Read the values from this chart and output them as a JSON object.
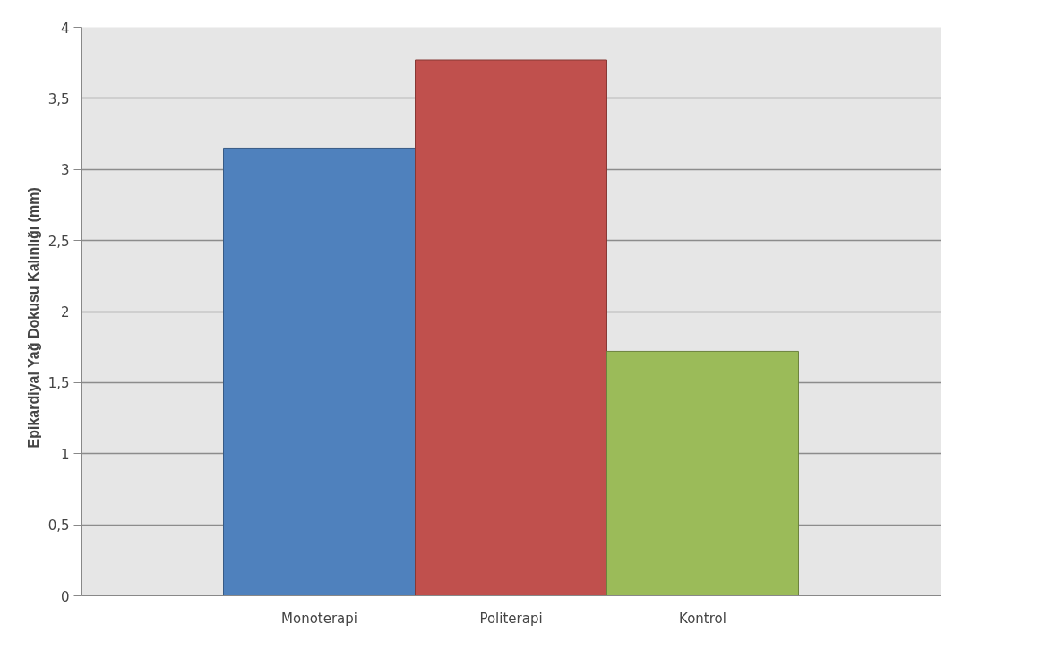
{
  "chart_data": {
    "type": "bar",
    "ylabel": "Epikardiyal  Yağ Dokusu  Kalınlığı  (mm)",
    "categories": [
      "Monoterapi",
      "Politerapi",
      "Kontrol"
    ],
    "values": [
      3.15,
      3.77,
      1.72
    ],
    "colors": [
      "#4f81bd",
      "#c0504d",
      "#9bbb59"
    ],
    "ylim": [
      0,
      4
    ],
    "yticks": [
      0,
      {
        "value": 0.5,
        "label": "0,5"
      },
      1,
      {
        "value": 1.5,
        "label": "1,5"
      },
      2,
      {
        "value": 2.5,
        "label": "2,5"
      },
      3,
      {
        "value": 3.5,
        "label": "3,5"
      },
      4
    ],
    "grid": "y"
  }
}
